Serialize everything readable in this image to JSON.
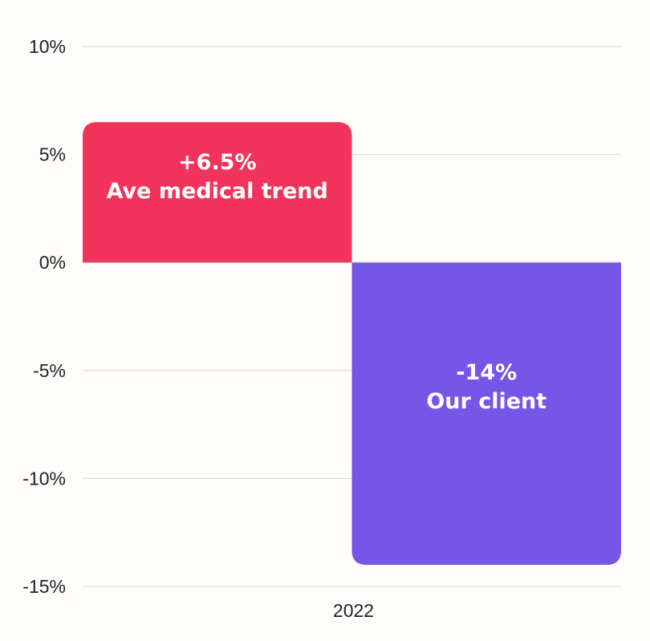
{
  "chart_data": {
    "type": "bar",
    "categories": [
      "2022"
    ],
    "series": [
      {
        "value": 6.5,
        "label_value": "+6.5%",
        "label_name": "Ave medical trend",
        "color": "#f2335c"
      },
      {
        "value": -14,
        "label_value": "-14%",
        "label_name": "Our client",
        "color": "#7556e6"
      }
    ],
    "ylim": [
      -15,
      10
    ],
    "y_ticks": [
      10,
      5,
      0,
      -5,
      -10,
      -15
    ],
    "y_tick_labels": [
      "10%",
      "5%",
      "0%",
      "-5%",
      "-10%",
      "-15%"
    ],
    "title": "",
    "xlabel": "",
    "ylabel": "",
    "grid": true
  }
}
